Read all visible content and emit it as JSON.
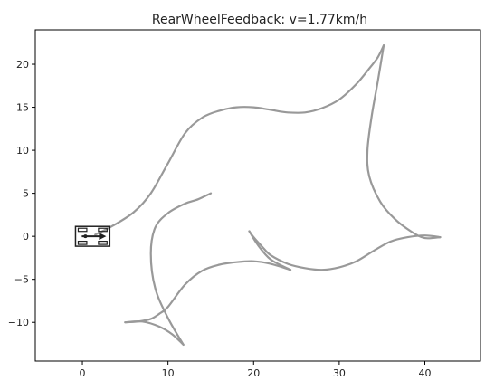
{
  "chart_data": {
    "type": "line",
    "title": "RearWheelFeedback: v=1.77km/h",
    "xlabel": "",
    "ylabel": "",
    "xlim": [
      -5.5,
      46.5
    ],
    "ylim": [
      -14.5,
      24
    ],
    "xticks": [
      0,
      10,
      20,
      30,
      40
    ],
    "yticks": [
      20,
      15,
      10,
      5,
      0,
      -5,
      -10
    ],
    "xtick_labels": [
      "0",
      "10",
      "20",
      "30",
      "40"
    ],
    "ytick_labels": [
      "20",
      "15",
      "10",
      "5",
      "0",
      "−5",
      "−10"
    ],
    "grid": false,
    "legend": false,
    "path_color": "#999999",
    "vehicle_color": "#222222",
    "series": [
      {
        "x": [
          1.5,
          3.5,
          6,
          8,
          10,
          12,
          14,
          16,
          18,
          20,
          22,
          24,
          26,
          28,
          30,
          32,
          33.5,
          34.5,
          35.2
        ],
        "y": [
          0.2,
          1.2,
          2.8,
          5,
          8.5,
          12,
          13.8,
          14.6,
          15,
          15,
          14.7,
          14.4,
          14.4,
          14.9,
          15.9,
          17.7,
          19.5,
          20.8,
          22.2
        ]
      },
      {
        "x": [
          35.2,
          34.5,
          33.8,
          33.3,
          33.5,
          34.8,
          36.5,
          38.5,
          40,
          41.8
        ],
        "y": [
          22.2,
          18,
          14,
          10,
          7,
          4,
          2,
          0.5,
          -0.2,
          -0.1
        ]
      },
      {
        "x": [
          41.8,
          40,
          38,
          36,
          34,
          32,
          30,
          28,
          26,
          24,
          22,
          21,
          20,
          19.5
        ],
        "y": [
          -0.1,
          0.1,
          -0.1,
          -0.6,
          -1.7,
          -2.9,
          -3.6,
          -3.9,
          -3.7,
          -3.2,
          -2.2,
          -1.2,
          -0.1,
          0.6
        ]
      },
      {
        "x": [
          19.5,
          20.5,
          22,
          24.3
        ],
        "y": [
          0.6,
          -1,
          -2.7,
          -3.9
        ]
      },
      {
        "x": [
          24.3,
          22,
          20,
          18,
          16,
          14,
          12,
          10,
          9,
          8,
          6.5,
          5
        ],
        "y": [
          -3.9,
          -3.2,
          -2.9,
          -3,
          -3.3,
          -4,
          -5.6,
          -8.2,
          -9,
          -9.6,
          -9.9,
          -10
        ]
      },
      {
        "x": [
          5,
          7,
          9,
          10.5,
          11.8
        ],
        "y": [
          -10,
          -9.9,
          -10.5,
          -11.4,
          -12.6
        ]
      },
      {
        "x": [
          11.8,
          10,
          8.5,
          8,
          8.5,
          10,
          12,
          13.5,
          15
        ],
        "y": [
          -12.6,
          -9.5,
          -6,
          -2,
          1,
          2.7,
          3.8,
          4.3,
          5
        ]
      }
    ],
    "vehicle": {
      "x": 1.2,
      "y": 0,
      "heading_deg": 0,
      "length": 4,
      "width": 2.3
    }
  }
}
